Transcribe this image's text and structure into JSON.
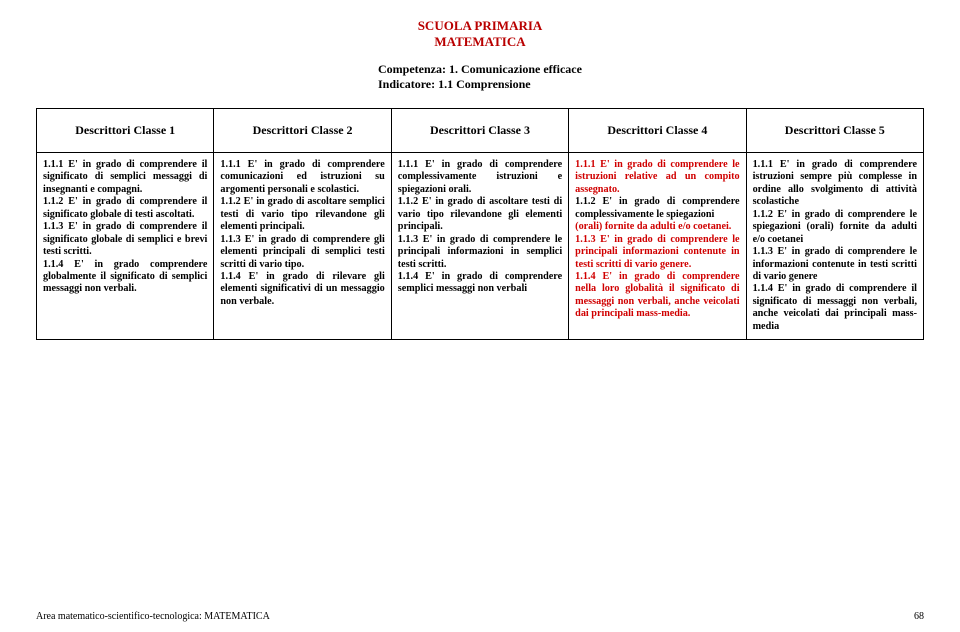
{
  "header": {
    "title": "SCUOLA PRIMARIA",
    "subtitle": "MATEMATICA",
    "competenza": "Competenza: 1. Comunicazione efficace",
    "indicatore": "Indicatore: 1.1 Comprensione"
  },
  "columns": [
    "Descrittori Classe 1",
    "Descrittori Classe 2",
    "Descrittori Classe 3",
    "Descrittori Classe 4",
    "Descrittori Classe 5"
  ],
  "cells": {
    "c1_111": "1.1.1 E' in grado di comprendere il significato di semplici messaggi di insegnanti e compagni.",
    "c1_112": "1.1.2 E' in grado di comprendere il significato globale di testi ascoltati.",
    "c1_113": "1.1.3 E' in grado di comprendere il significato globale di semplici e brevi testi scritti.",
    "c1_114": "1.1.4 E' in grado comprendere globalmente il significato di semplici messaggi non verbali.",
    "c2_111": "1.1.1 E' in grado di comprendere comunicazioni ed istruzioni su argomenti personali e scolastici.",
    "c2_112": "1.1.2 E' in grado di ascoltare semplici testi di vario tipo rilevandone gli elementi principali.",
    "c2_113": "1.1.3 E' in grado di comprendere gli elementi principali di semplici testi scritti di vario tipo.",
    "c2_114": "1.1.4 E' in grado di rilevare gli elementi significativi di un messaggio non verbale.",
    "c3_111": "1.1.1 E' in grado di comprendere complessivamente istruzioni e spiegazioni orali.",
    "c3_112": "1.1.2 E' in grado di ascoltare testi di vario tipo rilevandone gli elementi principali.",
    "c3_113": "1.1.3 E' in grado di comprendere le principali informazioni in semplici testi scritti.",
    "c3_114": "1.1.4 E' in grado di comprendere semplici messaggi non verbali",
    "c4_111": "1.1.1 E' in grado di comprendere le istruzioni relative ad un compito assegnato.",
    "c4_112a": "1.1.2 E' in grado di comprendere complessivamente le spiegazioni",
    "c4_112b": "(orali) fornite da adulti e/o coetanei.",
    "c4_113": "1.1.3 E' in grado di comprendere le principali informazioni contenute in testi scritti di vario genere.",
    "c4_114": "1.1.4 E' in grado di comprendere nella loro globalità il significato di messaggi non verbali, anche veicolati dai principali mass-media.",
    "c5_111": "1.1.1 E' in grado di comprendere istruzioni sempre più complesse in ordine allo svolgimento di attività scolastiche",
    "c5_112": "1.1.2 E' in grado di comprendere le spiegazioni (orali) fornite da adulti e/o coetanei",
    "c5_113": "1.1.3 E' in grado di comprendere le informazioni contenute in testi scritti di vario genere",
    "c5_114": "1.1.4 E' in grado di comprendere il significato di messaggi non verbali, anche veicolati dai principali mass-media"
  },
  "footer": {
    "left": "Area matematico-scientifico-tecnologica: MATEMATICA",
    "page": "68"
  },
  "colors": {
    "title_red": "#b90000",
    "text_red": "#d00000",
    "black": "#000000",
    "bg": "#ffffff"
  }
}
